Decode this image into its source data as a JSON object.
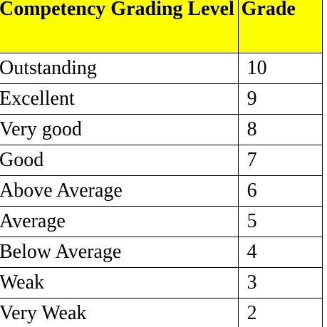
{
  "table": {
    "header": [
      "Competency Grading Level",
      "Grade"
    ],
    "rows": [
      [
        "Outstanding",
        10
      ],
      [
        "Excellent",
        9
      ],
      [
        "Very good",
        8
      ],
      [
        "Good",
        7
      ],
      [
        "Above Average",
        6
      ],
      [
        "Average",
        5
      ],
      [
        "Below Average",
        4
      ],
      [
        "Weak",
        3
      ],
      [
        "Very Weak",
        2
      ]
    ]
  }
}
